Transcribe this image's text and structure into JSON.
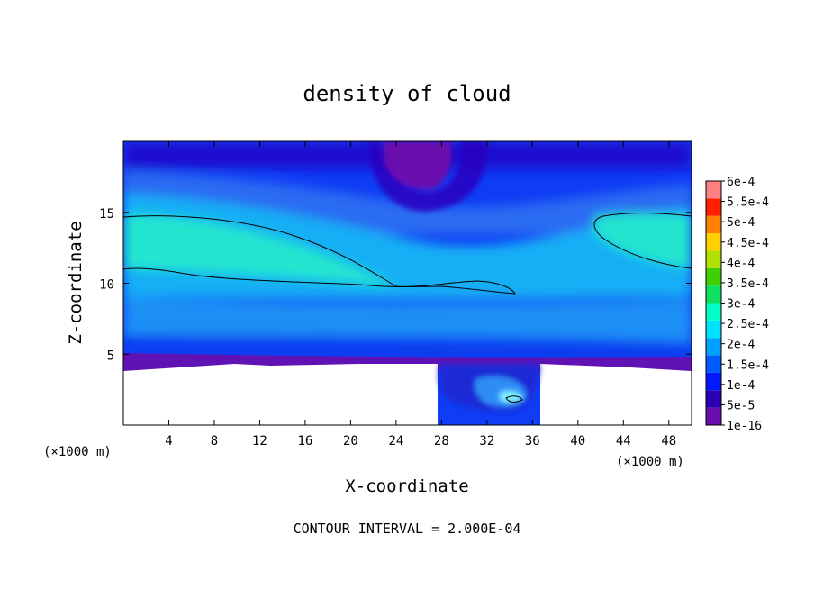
{
  "chart_data": {
    "type": "heatmap",
    "title": "density of cloud",
    "xlabel": "X-coordinate",
    "ylabel": "Z-coordinate",
    "x_unit": "(×1000 m)",
    "y_unit": "(×1000 m)",
    "xlim": [
      0,
      50
    ],
    "ylim": [
      0,
      20
    ],
    "x_ticks": [
      4,
      8,
      12,
      16,
      20,
      24,
      28,
      32,
      36,
      40,
      44,
      48
    ],
    "y_ticks": [
      5,
      10,
      15
    ],
    "colorbar": {
      "labels": [
        "1e-16",
        "5e-5",
        "1e-4",
        "1.5e-4",
        "2e-4",
        "2.5e-4",
        "3e-4",
        "3.5e-4",
        "4e-4",
        "4.5e-4",
        "5e-4",
        "5.5e-4",
        "6e-4"
      ],
      "colors": [
        "#6a0dad",
        "#2b00b5",
        "#0019ff",
        "#005aff",
        "#00a0ff",
        "#00e0ff",
        "#00ffc8",
        "#10e060",
        "#40d000",
        "#b0e000",
        "#ffd000",
        "#ff8000",
        "#ff2000",
        "#ff8080"
      ]
    },
    "contour_interval": "CONTOUR INTERVAL = 2.000E-04",
    "contour_level": 0.0002,
    "notes": "Highest density (~2e-4) band at z ≈ 10-15 km spanning x ≈ 0-35 km and x ≈ 41-50 km; low-density pocket near x ≈ 24-30, z > 17; no data below z ≈ 4 except a plume at x ≈ 28-36."
  }
}
